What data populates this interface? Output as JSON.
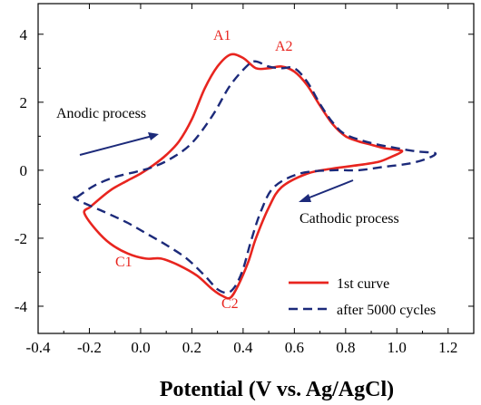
{
  "chart_data": {
    "type": "line",
    "title": "",
    "xlabel": "Potential  (V vs. Ag/AgCl)",
    "ylabel": "",
    "xlim": [
      -0.4,
      1.3
    ],
    "ylim": [
      -4.8,
      4.9
    ],
    "xticks": [
      "-0.4",
      "-0.2",
      "0.0",
      "0.2",
      "0.4",
      "0.6",
      "0.8",
      "1.0",
      "1.2"
    ],
    "yticks": [
      "4",
      "2",
      "0",
      "-2",
      "-4"
    ],
    "grid": false,
    "legend_position": "bottom-right",
    "colors": {
      "series1": "#e8251f",
      "series2": "#1c2a7a",
      "annotation": "#1c2a7a",
      "peak_labels": "#e8251f"
    },
    "series": [
      {
        "name": "1st curve",
        "style": "solid",
        "x": [
          -0.2,
          -0.12,
          -0.05,
          0.0,
          0.05,
          0.1,
          0.15,
          0.2,
          0.25,
          0.3,
          0.35,
          0.4,
          0.45,
          0.5,
          0.55,
          0.6,
          0.65,
          0.7,
          0.75,
          0.8,
          0.85,
          0.9,
          0.95,
          1.0,
          1.02,
          0.98,
          0.93,
          0.85,
          0.75,
          0.65,
          0.55,
          0.5,
          0.45,
          0.42,
          0.38,
          0.35,
          0.32,
          0.28,
          0.22,
          0.15,
          0.08,
          0.02,
          -0.05,
          -0.12,
          -0.18,
          -0.22,
          -0.2
        ],
        "y": [
          -1.1,
          -0.6,
          -0.3,
          -0.1,
          0.15,
          0.45,
          0.85,
          1.5,
          2.4,
          3.05,
          3.4,
          3.3,
          3.0,
          3.0,
          3.05,
          2.9,
          2.5,
          1.9,
          1.35,
          1.0,
          0.85,
          0.75,
          0.65,
          0.6,
          0.55,
          0.4,
          0.25,
          0.15,
          0.05,
          -0.1,
          -0.5,
          -1.1,
          -2.0,
          -2.7,
          -3.4,
          -3.75,
          -3.7,
          -3.5,
          -3.1,
          -2.8,
          -2.6,
          -2.6,
          -2.45,
          -2.15,
          -1.7,
          -1.25,
          -1.1
        ]
      },
      {
        "name": "after 5000 cycles",
        "style": "dashed",
        "x": [
          -0.25,
          -0.18,
          -0.1,
          -0.02,
          0.05,
          0.12,
          0.2,
          0.28,
          0.35,
          0.42,
          0.45,
          0.5,
          0.55,
          0.6,
          0.65,
          0.7,
          0.75,
          0.8,
          0.9,
          1.0,
          1.08,
          1.15,
          1.12,
          1.05,
          0.95,
          0.85,
          0.75,
          0.62,
          0.52,
          0.47,
          0.43,
          0.4,
          0.37,
          0.34,
          0.3,
          0.25,
          0.18,
          0.1,
          0.02,
          -0.05,
          -0.12,
          -0.18,
          -0.24,
          -0.26,
          -0.25
        ],
        "y": [
          -0.8,
          -0.45,
          -0.2,
          -0.05,
          0.1,
          0.35,
          0.8,
          1.6,
          2.5,
          3.1,
          3.2,
          3.05,
          3.0,
          3.0,
          2.6,
          1.95,
          1.4,
          1.05,
          0.8,
          0.65,
          0.55,
          0.5,
          0.35,
          0.2,
          0.1,
          0.0,
          0.0,
          -0.1,
          -0.5,
          -1.2,
          -2.1,
          -2.9,
          -3.4,
          -3.6,
          -3.5,
          -3.1,
          -2.6,
          -2.2,
          -1.85,
          -1.55,
          -1.3,
          -1.1,
          -0.9,
          -0.8,
          -0.8
        ]
      }
    ],
    "peak_labels": [
      "A1",
      "A2",
      "C1",
      "C2"
    ],
    "annotations": [
      "Anodic process",
      "Cathodic process"
    ]
  }
}
